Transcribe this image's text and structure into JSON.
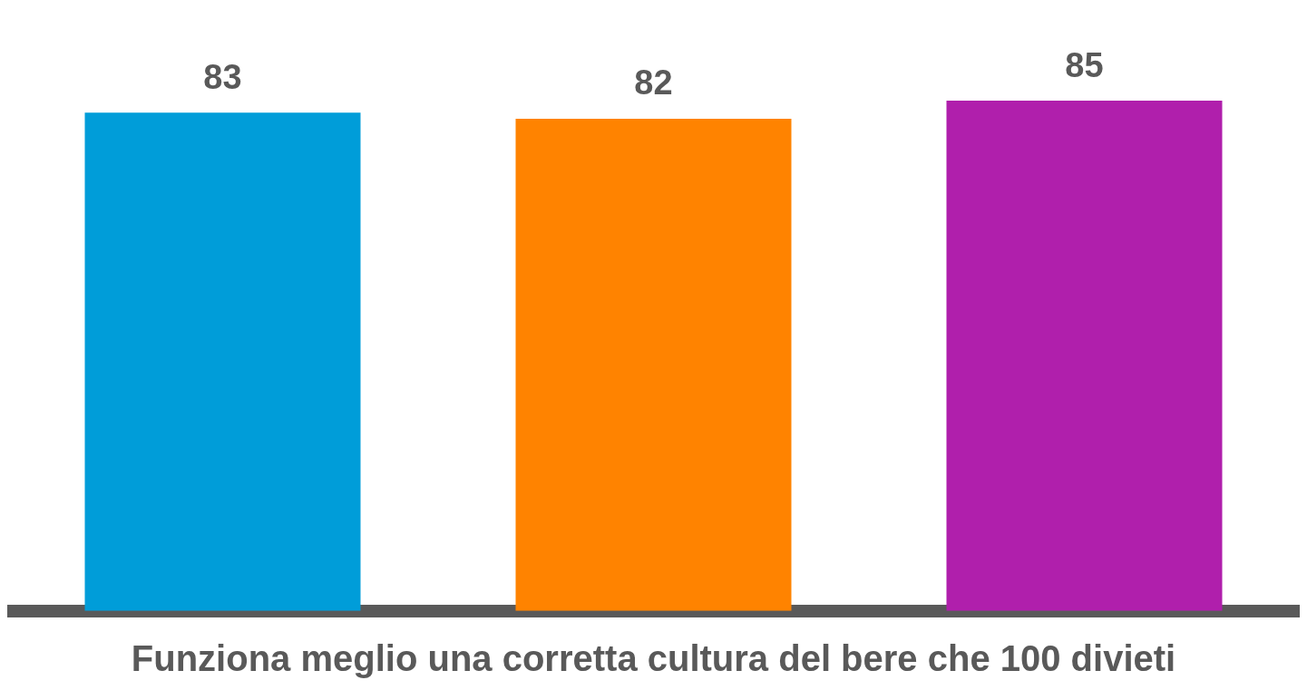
{
  "chart_data": {
    "type": "bar",
    "xlabel": "Funziona meglio una corretta cultura del bere che 100 divieti",
    "categories": [
      null,
      null,
      null
    ],
    "values": [
      83,
      82,
      85
    ],
    "colors": [
      "#009dd9",
      "#ff8300",
      "#b01fac"
    ],
    "data_labels": true,
    "grid": false,
    "legend": false
  }
}
